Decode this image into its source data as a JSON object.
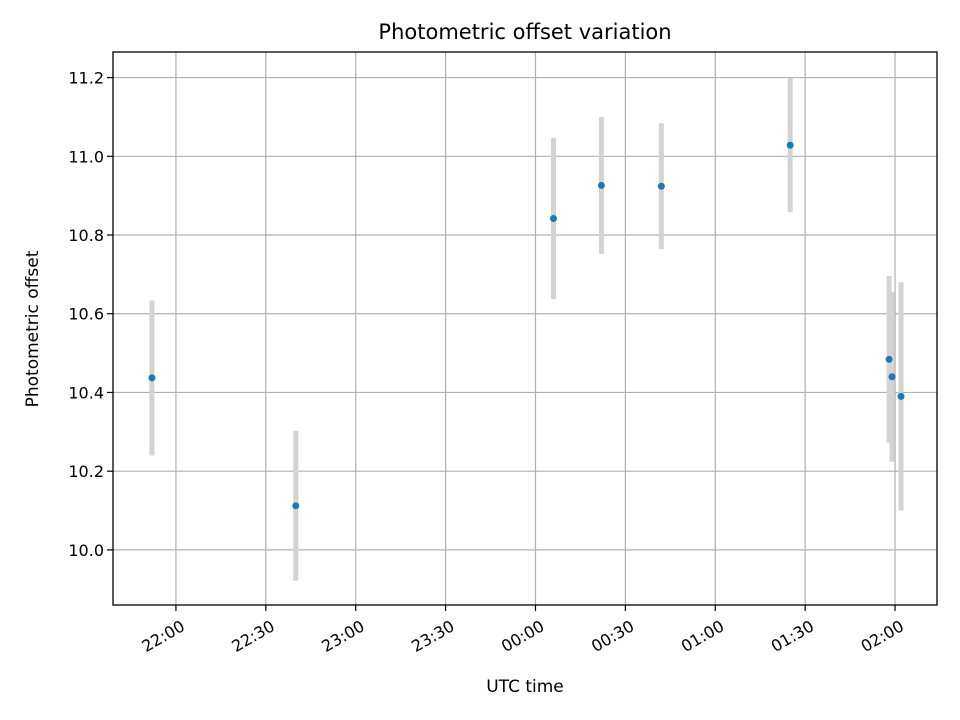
{
  "chart_data": {
    "type": "scatter",
    "title": "Photometric offset variation",
    "xlabel": "UTC time",
    "ylabel": "Photometric offset",
    "x_ticks": [
      {
        "minute": -120,
        "label": "22:00"
      },
      {
        "minute": -90,
        "label": "22:30"
      },
      {
        "minute": -60,
        "label": "23:00"
      },
      {
        "minute": -30,
        "label": "23:30"
      },
      {
        "minute": 0,
        "label": "00:00"
      },
      {
        "minute": 30,
        "label": "00:30"
      },
      {
        "minute": 60,
        "label": "01:00"
      },
      {
        "minute": 90,
        "label": "01:30"
      },
      {
        "minute": 120,
        "label": "02:00"
      }
    ],
    "y_ticks": [
      10.0,
      10.2,
      10.4,
      10.6,
      10.8,
      11.0,
      11.2
    ],
    "y_tick_labels": [
      "10.0",
      "10.2",
      "10.4",
      "10.6",
      "10.8",
      "11.0",
      "11.2"
    ],
    "xlim_minutes": [
      -141,
      134
    ],
    "ylim": [
      9.86,
      11.265
    ],
    "grid": true,
    "point_color": "#1f77b4",
    "errorbar_color": "#d3d3d3",
    "points": [
      {
        "time": "21:52",
        "minute": -128,
        "y": 10.437,
        "yerr": 0.197
      },
      {
        "time": "22:40",
        "minute": -80,
        "y": 10.112,
        "yerr": 0.19
      },
      {
        "time": "00:06",
        "minute": 6,
        "y": 10.842,
        "yerr": 0.205
      },
      {
        "time": "00:22",
        "minute": 22,
        "y": 10.926,
        "yerr": 0.174
      },
      {
        "time": "00:42",
        "minute": 42,
        "y": 10.924,
        "yerr": 0.16
      },
      {
        "time": "01:25",
        "minute": 85,
        "y": 11.028,
        "yerr": 0.17
      },
      {
        "time": "01:58",
        "minute": 118,
        "y": 10.484,
        "yerr": 0.212
      },
      {
        "time": "01:59",
        "minute": 119,
        "y": 10.44,
        "yerr": 0.216
      },
      {
        "time": "02:02",
        "minute": 122,
        "y": 10.39,
        "yerr": 0.29
      }
    ]
  }
}
